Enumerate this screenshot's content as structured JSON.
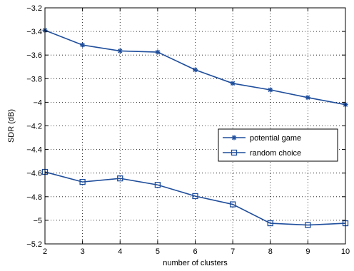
{
  "chart_data": {
    "type": "line",
    "title": "",
    "xlabel": "number of clusters",
    "ylabel": "SDR (dB)",
    "x": [
      2,
      3,
      4,
      5,
      6,
      7,
      8,
      9,
      10
    ],
    "xlim": [
      2,
      10
    ],
    "ylim": [
      -5.2,
      -3.2
    ],
    "xticks": [
      "2",
      "3",
      "4",
      "5",
      "6",
      "7",
      "8",
      "9",
      "10"
    ],
    "yticks": [
      "-3.2",
      "-3.4",
      "-3.6",
      "-3.8",
      "-4",
      "-4.2",
      "-4.4",
      "-4.6",
      "-4.8",
      "-5",
      "-5.2"
    ],
    "grid": true,
    "legend_position": "right",
    "series": [
      {
        "name": "potential game",
        "marker": "star",
        "color": "#1f4e9c",
        "values": [
          -3.39,
          -3.515,
          -3.565,
          -3.575,
          -3.725,
          -3.84,
          -3.895,
          -3.96,
          -4.02
        ]
      },
      {
        "name": "random choice",
        "marker": "square",
        "color": "#1f4e9c",
        "values": [
          -4.59,
          -4.675,
          -4.645,
          -4.7,
          -4.795,
          -4.865,
          -5.025,
          -5.04,
          -5.025
        ]
      }
    ]
  }
}
